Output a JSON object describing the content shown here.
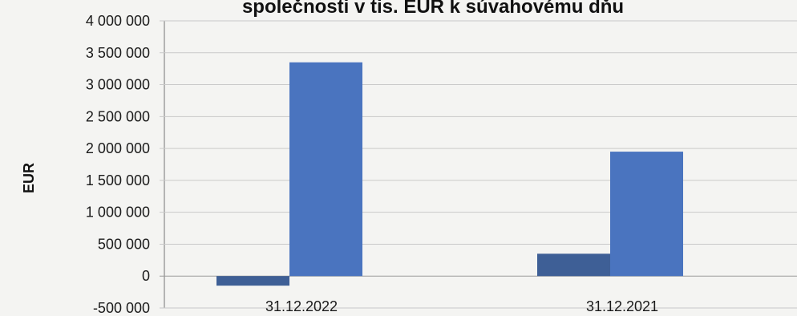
{
  "chart_data": {
    "type": "bar",
    "title": "společnosti v tis. EUR k súvahovému dňu",
    "xlabel": "",
    "ylabel": "EUR",
    "categories": [
      "31.12.2022",
      "31.12.2021"
    ],
    "series": [
      {
        "values": [
          -150000,
          350000
        ]
      },
      {
        "values": [
          3350000,
          1950000
        ]
      }
    ],
    "ylim": [
      -500000,
      4000000
    ],
    "yticks": [
      4000000,
      3500000,
      3000000,
      2500000,
      2000000,
      1500000,
      1000000,
      500000,
      0,
      -500000
    ],
    "ytick_labels": [
      "4 000 000",
      "3 500 000",
      "3 000 000",
      "2 500 000",
      "2 000 000",
      "1 500 000",
      "1 000 000",
      "500 000",
      "0",
      "-500 000"
    ],
    "grid": true,
    "legend": "none",
    "colors": [
      "#3e5f96",
      "#4a74bf"
    ]
  }
}
